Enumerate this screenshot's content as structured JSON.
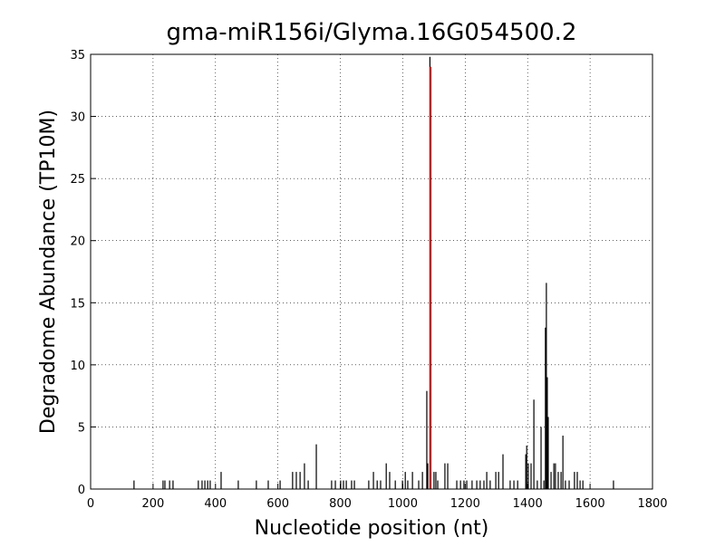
{
  "chart_data": {
    "type": "spike",
    "title": "gma-miR156i/Glyma.16G054500.2",
    "x_label": "Nucleotide position (nt)",
    "y_label": "Degradome Abundance (TP10M)",
    "xlim": [
      0,
      1800
    ],
    "xticks": [
      0,
      200,
      400,
      600,
      800,
      1000,
      1200,
      1400,
      1600,
      1800
    ],
    "ylim": [
      0,
      35
    ],
    "yticks": [
      0,
      5,
      10,
      15,
      20,
      25,
      30,
      35
    ],
    "grid": true,
    "series": [
      {
        "color": "#000000",
        "x": [
          139,
          232,
          238,
          253,
          264,
          345,
          357,
          366,
          375,
          383,
          418,
          473,
          531,
          569,
          607,
          647,
          659,
          671,
          685,
          697,
          723,
          772,
          784,
          801,
          810,
          819,
          836,
          845,
          891,
          906,
          918,
          929,
          947,
          958,
          976,
          999,
          1008,
          1016,
          1031,
          1051,
          1063,
          1077,
          1080,
          1087,
          1100,
          1106,
          1112,
          1135,
          1144,
          1173,
          1185,
          1196,
          1205,
          1222,
          1237,
          1248,
          1260,
          1269,
          1280,
          1298,
          1307,
          1321,
          1344,
          1356,
          1368,
          1394,
          1397,
          1402,
          1411,
          1420,
          1431,
          1443,
          1452,
          1457,
          1460,
          1463,
          1466,
          1475,
          1484,
          1489,
          1498,
          1507,
          1513,
          1521,
          1533,
          1550,
          1559,
          1568,
          1577,
          1675
        ],
        "values": [
          0.69,
          0.69,
          0.69,
          0.69,
          0.69,
          0.69,
          0.69,
          0.69,
          0.69,
          0.69,
          1.38,
          0.69,
          0.69,
          0.69,
          0.69,
          1.38,
          1.38,
          1.38,
          2.07,
          0.69,
          3.6,
          0.69,
          0.69,
          0.69,
          0.69,
          0.69,
          0.69,
          0.69,
          0.69,
          1.38,
          0.69,
          0.69,
          2.07,
          1.38,
          0.69,
          0.69,
          1.38,
          0.69,
          1.38,
          0.69,
          1.38,
          7.9,
          2.07,
          34.8,
          1.38,
          1.38,
          0.69,
          2.07,
          2.07,
          0.69,
          0.69,
          0.69,
          0.69,
          0.69,
          0.69,
          0.69,
          0.69,
          1.38,
          0.69,
          1.38,
          1.38,
          2.8,
          0.69,
          0.69,
          0.69,
          2.8,
          3.5,
          2.07,
          2.07,
          7.2,
          0.69,
          5.0,
          0.69,
          13.0,
          16.6,
          9.0,
          5.8,
          1.38,
          2.07,
          2.07,
          1.38,
          1.38,
          4.3,
          0.69,
          0.69,
          1.38,
          1.38,
          0.69,
          0.69,
          0.69
        ]
      },
      {
        "color": "#cc0000",
        "x": [
          1089
        ],
        "values": [
          34
        ]
      }
    ]
  }
}
